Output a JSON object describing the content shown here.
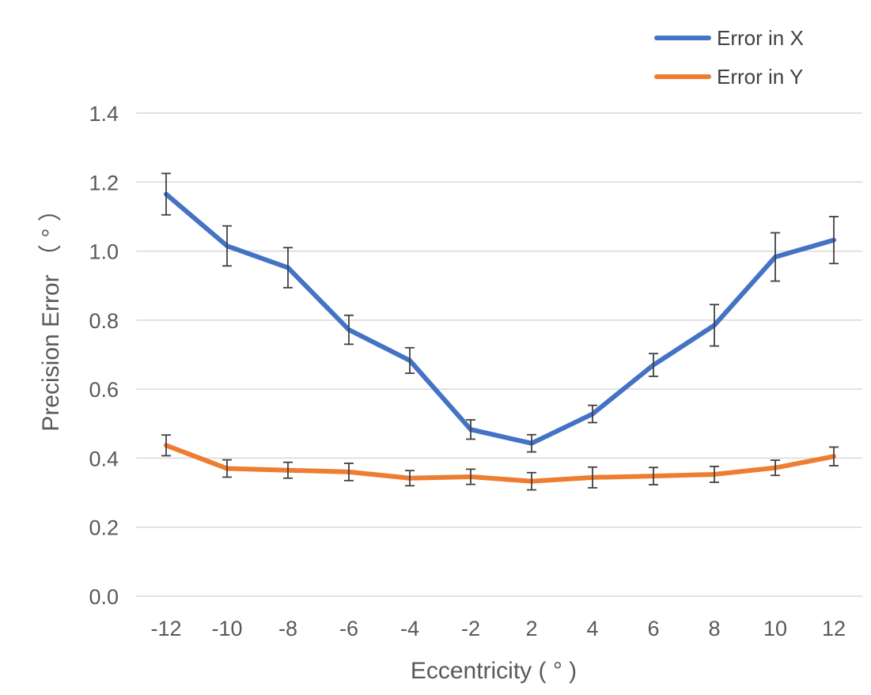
{
  "chart_data": {
    "type": "line",
    "title": "",
    "xlabel": "Eccentricity ( ° )",
    "ylabel": "Precision Error （ ° ）",
    "categories": [
      "-12",
      "-10",
      "-8",
      "-6",
      "-4",
      "-2",
      "2",
      "4",
      "6",
      "8",
      "10",
      "12"
    ],
    "ylim": [
      0,
      1.4
    ],
    "yticks": [
      "0.0",
      "0.2",
      "0.4",
      "0.6",
      "0.8",
      "1.0",
      "1.2",
      "1.4"
    ],
    "grid": "horizontal",
    "legend_position": "top-right",
    "series": [
      {
        "name": "Error in X",
        "color": "#4472C4",
        "values": [
          1.165,
          1.015,
          0.952,
          0.772,
          0.683,
          0.483,
          0.443,
          0.528,
          0.67,
          0.785,
          0.983,
          1.032
        ],
        "error": [
          0.06,
          0.058,
          0.058,
          0.042,
          0.037,
          0.028,
          0.025,
          0.025,
          0.033,
          0.06,
          0.07,
          0.068
        ]
      },
      {
        "name": "Error in Y",
        "color": "#ED7D31",
        "values": [
          0.437,
          0.37,
          0.365,
          0.36,
          0.342,
          0.346,
          0.333,
          0.344,
          0.348,
          0.353,
          0.372,
          0.405
        ],
        "error": [
          0.03,
          0.025,
          0.023,
          0.025,
          0.022,
          0.022,
          0.025,
          0.03,
          0.025,
          0.023,
          0.022,
          0.027
        ]
      }
    ]
  }
}
